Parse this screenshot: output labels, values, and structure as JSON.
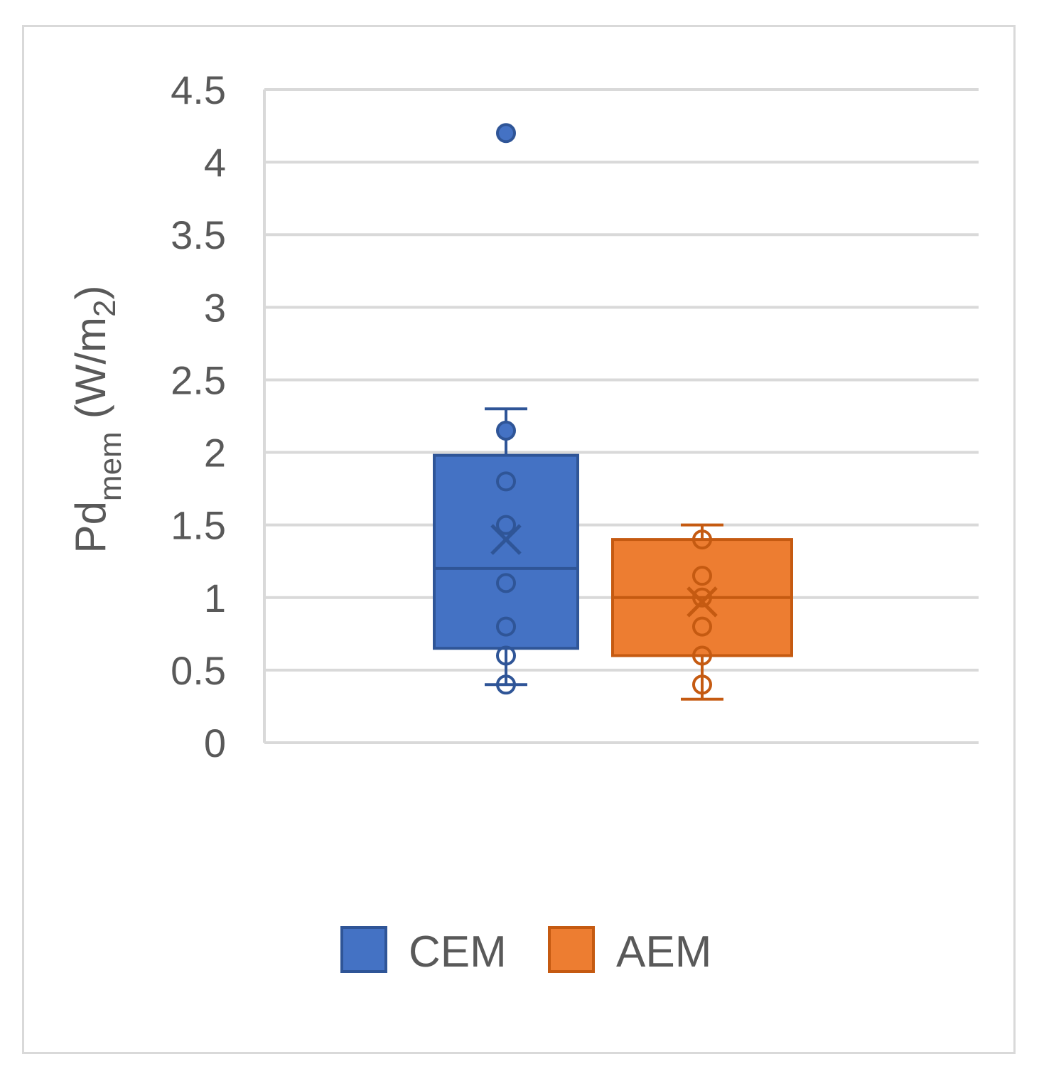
{
  "chart_data": {
    "type": "box",
    "title": "",
    "xlabel": "",
    "ylabel": {
      "main": "Pd",
      "subscript": "mem",
      "units_prefix": "(W/m",
      "units_subscript": "2",
      "units_suffix": ")"
    },
    "ylim": [
      0,
      4.5
    ],
    "yticks": [
      "0",
      "0.5",
      "1",
      "1.5",
      "2",
      "2.5",
      "3",
      "3.5",
      "4",
      "4.5"
    ],
    "ytick_values": [
      0,
      0.5,
      1,
      1.5,
      2,
      2.5,
      3,
      3.5,
      4,
      4.5
    ],
    "grid": true,
    "legend_position": "bottom",
    "series": [
      {
        "name": "CEM",
        "color": "#4472c4",
        "border": "#2f5597",
        "q1": 0.65,
        "median": 1.2,
        "q3": 1.98,
        "mean": 1.4,
        "whisker_low": 0.4,
        "whisker_high": 2.3,
        "points": [
          0.4,
          0.6,
          0.8,
          1.1,
          1.5,
          1.8
        ],
        "outliers": [
          2.15,
          4.2
        ]
      },
      {
        "name": "AEM",
        "color": "#ed7d31",
        "border": "#c55a11",
        "q1": 0.6,
        "median": 1.0,
        "q3": 1.4,
        "mean": 0.97,
        "whisker_low": 0.3,
        "whisker_high": 1.5,
        "points": [
          0.4,
          0.6,
          0.8,
          1.0,
          1.15,
          1.4
        ],
        "outliers": []
      }
    ]
  }
}
